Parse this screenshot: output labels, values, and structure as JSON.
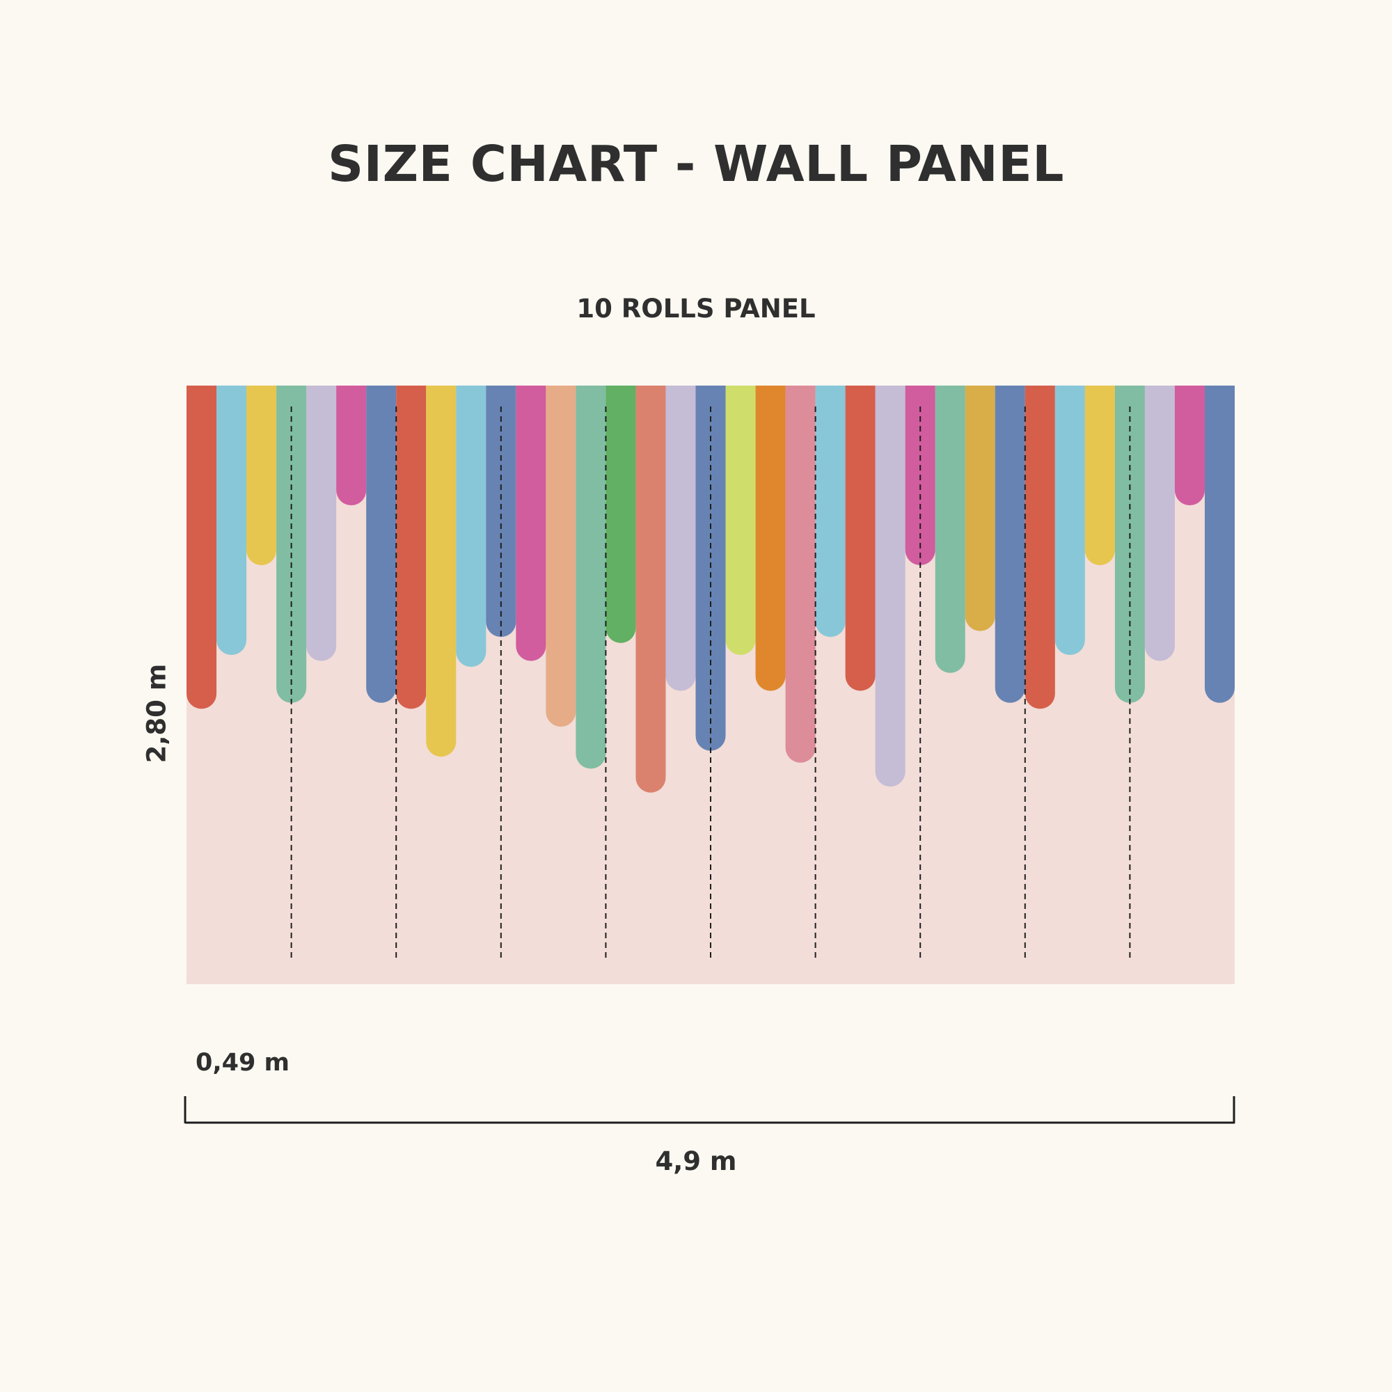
{
  "title": "SIZE CHART - WALL PANEL",
  "subtitle": "10 ROLLS PANEL",
  "dimensions": {
    "height_label": "2,80 m",
    "roll_width_label": "0,49 m",
    "total_width_label": "4,9 m"
  },
  "panel": {
    "rolls": 10,
    "background_color": "#f2ddd8",
    "divider_color": "#1e1e1e",
    "stripes": [
      {
        "color": "#d55f4b",
        "length": 0.54
      },
      {
        "color": "#88c7d8",
        "length": 0.45
      },
      {
        "color": "#e6c64e",
        "length": 0.3
      },
      {
        "color": "#80bda2",
        "length": 0.53
      },
      {
        "color": "#c5bcd6",
        "length": 0.46
      },
      {
        "color": "#d15c9e",
        "length": 0.2
      },
      {
        "color": "#6783b3",
        "length": 0.53
      },
      {
        "color": "#d55f4b",
        "length": 0.54
      },
      {
        "color": "#e6c64e",
        "length": 0.62
      },
      {
        "color": "#88c7d8",
        "length": 0.47
      },
      {
        "color": "#6783b3",
        "length": 0.42
      },
      {
        "color": "#d15c9e",
        "length": 0.46
      },
      {
        "color": "#e6ac87",
        "length": 0.57
      },
      {
        "color": "#80bda2",
        "length": 0.64
      },
      {
        "color": "#61b063",
        "length": 0.43
      },
      {
        "color": "#db826f",
        "length": 0.68
      },
      {
        "color": "#c5bcd6",
        "length": 0.51
      },
      {
        "color": "#6783b3",
        "length": 0.61
      },
      {
        "color": "#cfde6a",
        "length": 0.45
      },
      {
        "color": "#e0872e",
        "length": 0.51
      },
      {
        "color": "#dd8c99",
        "length": 0.63
      },
      {
        "color": "#88c7d8",
        "length": 0.42
      },
      {
        "color": "#d55f4b",
        "length": 0.51
      },
      {
        "color": "#c5bcd6",
        "length": 0.67
      },
      {
        "color": "#d15c9e",
        "length": 0.3
      },
      {
        "color": "#80bda2",
        "length": 0.48
      },
      {
        "color": "#d9ad48",
        "length": 0.41
      },
      {
        "color": "#6783b3",
        "length": 0.53
      },
      {
        "color": "#d55f4b",
        "length": 0.54
      },
      {
        "color": "#88c7d8",
        "length": 0.45
      },
      {
        "color": "#e6c64e",
        "length": 0.3
      },
      {
        "color": "#80bda2",
        "length": 0.53
      },
      {
        "color": "#c5bcd6",
        "length": 0.46
      },
      {
        "color": "#d15c9e",
        "length": 0.2
      },
      {
        "color": "#6783b3",
        "length": 0.53
      }
    ]
  },
  "colors": {
    "page_background": "#fcf9f2",
    "text": "#2f2f2f"
  }
}
